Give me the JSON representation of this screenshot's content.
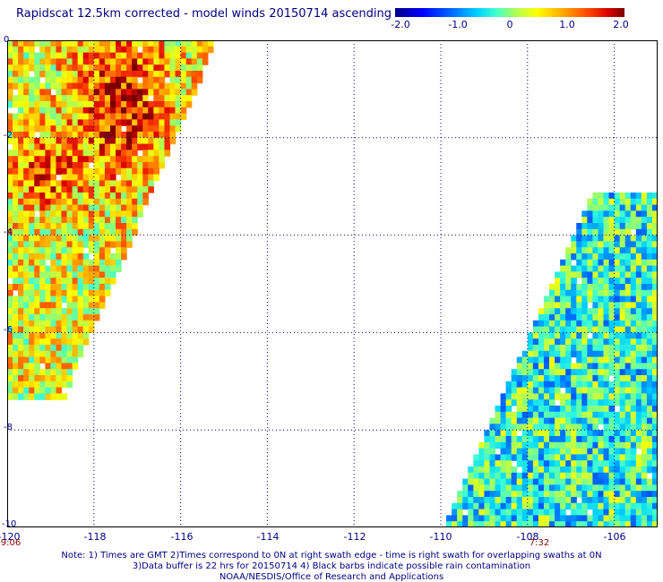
{
  "header": {
    "title": "Rapidscat 12.5km corrected - model winds 20150714 ascending"
  },
  "colorbar": {
    "labels": [
      "-2.0",
      "-1.0",
      "0",
      "1.0",
      "2.0"
    ],
    "min": -2.0,
    "max": 2.0,
    "colors": [
      "#00008a",
      "#0000ff",
      "#0064ff",
      "#00d2ff",
      "#40ffd0",
      "#a8ff5a",
      "#ffff00",
      "#ffb000",
      "#ff4800",
      "#d80000",
      "#7a0000"
    ]
  },
  "map": {
    "lon_range": [
      -120,
      -105
    ],
    "lat_range": [
      -10,
      0
    ],
    "lat_ticks": [
      "0",
      "-2",
      "-4",
      "-6",
      "-8",
      "-10"
    ],
    "lon_ticks": [
      "-120",
      "-118",
      "-116",
      "-114",
      "-112",
      "-110",
      "-108",
      "-106"
    ],
    "swath_times": [
      "9:06",
      "7:32"
    ],
    "swaths": [
      {
        "lon_edge_top": -115.2,
        "lon_edge_bottom": -120,
        "mean": 0.35,
        "hot_region": true
      },
      {
        "lon_edge_top": -105,
        "lon_edge_bottom": -110,
        "mean": -0.45,
        "hot_region": false
      }
    ]
  },
  "notes": {
    "line1": "Note: 1) Times are GMT 2)Times correspond to 0N at right swath edge - time is right swath for overlapping swaths at 0N",
    "line2": "3)Data buffer is 22 hrs for 20150714 4) Black barbs indicate possible rain contamination",
    "line3": "NOAA/NESDIS/Office of Research and Applications"
  }
}
